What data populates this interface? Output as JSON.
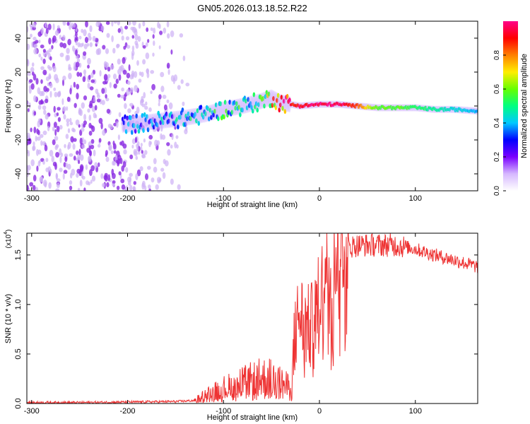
{
  "title": "GN05.2026.013.18.52.R22",
  "chart_data": [
    {
      "type": "heatmap",
      "name": "spectrogram",
      "xlabel": "Height of straight line (km)",
      "ylabel": "Frequency (Hz)",
      "xlim": [
        -305,
        165
      ],
      "ylim": [
        -50,
        50
      ],
      "xticks": [
        -300,
        -200,
        -100,
        0,
        100
      ],
      "yticks": [
        -40,
        -20,
        0,
        20,
        40
      ],
      "grid": false,
      "colorbar": {
        "label": "Normalized spectral amplitude",
        "range": [
          0.0,
          1.0
        ],
        "ticks": [
          "0.0",
          "0.2",
          "0.4",
          "0.6",
          "0.8"
        ],
        "colormap": [
          "#ffffff",
          "#d6b8ff",
          "#7a00ff",
          "#0000ff",
          "#00c8ff",
          "#00ff80",
          "#66ff00",
          "#ffee00",
          "#ff8000",
          "#ff0000",
          "#ff0088"
        ]
      },
      "ridge": {
        "x": [
          -200,
          -170,
          -140,
          -120,
          -100,
          -80,
          -60,
          -50,
          -40,
          -20,
          0,
          20,
          40,
          60,
          80,
          100,
          120,
          140,
          165
        ],
        "frequency": [
          -11,
          -9,
          -7,
          -5,
          -2,
          0,
          3,
          5,
          2,
          0,
          1,
          1,
          0,
          -1,
          -1,
          -1,
          -2,
          -2,
          -3
        ],
        "amplitude": [
          0.35,
          0.4,
          0.45,
          0.45,
          0.5,
          0.5,
          0.55,
          0.7,
          0.9,
          0.95,
          1.0,
          1.0,
          0.85,
          0.6,
          0.6,
          0.55,
          0.5,
          0.45,
          0.4
        ]
      },
      "noise_region": [
        -305,
        -150
      ]
    },
    {
      "type": "line",
      "name": "snr",
      "xlabel": "Height of straight line (km)",
      "ylabel": "SNR (10 * v/v)",
      "multiplier_label": "(x10",
      "multiplier_exponent": "4",
      "multiplier_close": ")",
      "xlim": [
        -305,
        165
      ],
      "ylim": [
        0,
        1.72
      ],
      "xticks": [
        -300,
        -200,
        -100,
        0,
        100
      ],
      "yticks": [
        0.0,
        0.5,
        1.0,
        1.5
      ],
      "ytick_labels": [
        "0.0",
        "0.5",
        "1.0",
        "1.5"
      ],
      "color": "#ee3333",
      "series": [
        {
          "name": "SNR",
          "x": [
            -305,
            -250,
            -200,
            -150,
            -130,
            -120,
            -100,
            -80,
            -60,
            -50,
            -40,
            -30,
            -28,
            -25,
            -20,
            -15,
            -10,
            -5,
            0,
            5,
            10,
            20,
            30,
            40,
            60,
            80,
            100,
            120,
            140,
            165
          ],
          "y": [
            0.01,
            0.01,
            0.015,
            0.02,
            0.03,
            0.08,
            0.15,
            0.2,
            0.25,
            0.25,
            0.2,
            0.15,
            0.25,
            0.75,
            0.9,
            0.8,
            0.75,
            0.85,
            1.1,
            1.3,
            1.4,
            1.5,
            1.58,
            1.6,
            1.6,
            1.6,
            1.56,
            1.5,
            1.45,
            1.38
          ]
        }
      ]
    }
  ]
}
